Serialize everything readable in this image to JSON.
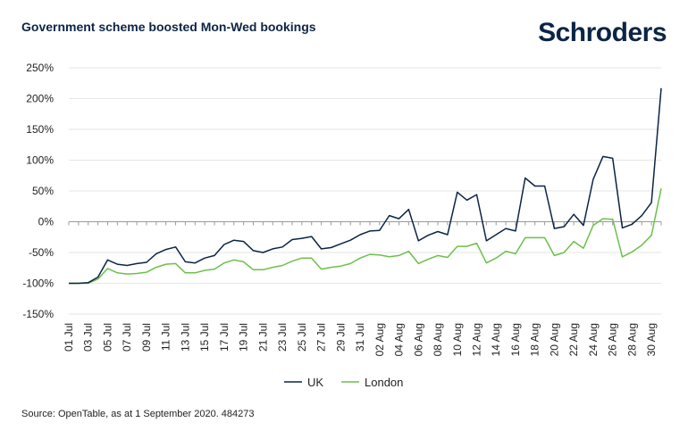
{
  "header": {
    "title": "Government scheme boosted Mon-Wed bookings",
    "brand": "Schroders"
  },
  "footer": {
    "source": "Source: OpenTable, as at 1 September 2020. 484273"
  },
  "chart_data": {
    "type": "line",
    "title": "Government scheme boosted Mon-Wed bookings",
    "xlabel": "",
    "ylabel": "",
    "ylim": [
      -150,
      250
    ],
    "yticks": [
      -150,
      -100,
      -50,
      0,
      50,
      100,
      150,
      200,
      250
    ],
    "ytick_labels": [
      "-150%",
      "-100%",
      "-50%",
      "0%",
      "50%",
      "100%",
      "150%",
      "200%",
      "250%"
    ],
    "grid": true,
    "legend_position": "bottom-center",
    "xtick_labels": [
      "01 Jul",
      "03 Jul",
      "05 Jul",
      "07 Jul",
      "09 Jul",
      "11 Jul",
      "13 Jul",
      "15 Jul",
      "17 Jul",
      "19 Jul",
      "21 Jul",
      "23 Jul",
      "25 Jul",
      "27 Jul",
      "29 Jul",
      "31 Jul",
      "02 Aug",
      "04 Aug",
      "06 Aug",
      "08 Aug",
      "10 Aug",
      "12 Aug",
      "14 Aug",
      "16 Aug",
      "18 Aug",
      "20 Aug",
      "22 Aug",
      "24 Aug",
      "26 Aug",
      "28 Aug",
      "30 Aug"
    ],
    "x": [
      "01 Jul",
      "02 Jul",
      "03 Jul",
      "04 Jul",
      "05 Jul",
      "06 Jul",
      "07 Jul",
      "08 Jul",
      "09 Jul",
      "10 Jul",
      "11 Jul",
      "12 Jul",
      "13 Jul",
      "14 Jul",
      "15 Jul",
      "16 Jul",
      "17 Jul",
      "18 Jul",
      "19 Jul",
      "20 Jul",
      "21 Jul",
      "22 Jul",
      "23 Jul",
      "24 Jul",
      "25 Jul",
      "26 Jul",
      "27 Jul",
      "28 Jul",
      "29 Jul",
      "30 Jul",
      "31 Jul",
      "01 Aug",
      "02 Aug",
      "03 Aug",
      "04 Aug",
      "05 Aug",
      "06 Aug",
      "07 Aug",
      "08 Aug",
      "09 Aug",
      "10 Aug",
      "11 Aug",
      "12 Aug",
      "13 Aug",
      "14 Aug",
      "15 Aug",
      "16 Aug",
      "17 Aug",
      "18 Aug",
      "19 Aug",
      "20 Aug",
      "21 Aug",
      "22 Aug",
      "23 Aug",
      "24 Aug",
      "25 Aug",
      "26 Aug",
      "27 Aug",
      "28 Aug",
      "29 Aug",
      "30 Aug",
      "31 Aug"
    ],
    "series": [
      {
        "name": "UK",
        "color": "#0b2545",
        "values": [
          -100,
          -100,
          -99,
          -90,
          -62,
          -69,
          -71,
          -68,
          -66,
          -52,
          -45,
          -41,
          -65,
          -67,
          -59,
          -55,
          -37,
          -30,
          -32,
          -47,
          -50,
          -44,
          -41,
          -29,
          -27,
          -24,
          -44,
          -42,
          -36,
          -30,
          -21,
          -15,
          -14,
          10,
          5,
          20,
          -31,
          -22,
          -16,
          -21,
          48,
          35,
          44,
          -31,
          -21,
          -11,
          -15,
          71,
          58,
          58,
          -11,
          -8,
          12,
          -6,
          69,
          106,
          103,
          -10,
          -4,
          10,
          31,
          217
        ]
      },
      {
        "name": "London",
        "color": "#6cc04a",
        "values": [
          -100,
          -100,
          -100,
          -93,
          -76,
          -83,
          -85,
          -84,
          -82,
          -74,
          -69,
          -68,
          -83,
          -83,
          -79,
          -77,
          -67,
          -62,
          -65,
          -78,
          -78,
          -74,
          -71,
          -64,
          -59,
          -59,
          -77,
          -74,
          -72,
          -68,
          -59,
          -53,
          -54,
          -57,
          -55,
          -48,
          -68,
          -61,
          -55,
          -58,
          -40,
          -40,
          -35,
          -67,
          -59,
          -48,
          -52,
          -26,
          -26,
          -26,
          -55,
          -50,
          -32,
          -43,
          -6,
          5,
          4,
          -57,
          -49,
          -38,
          -22,
          54
        ]
      }
    ]
  }
}
